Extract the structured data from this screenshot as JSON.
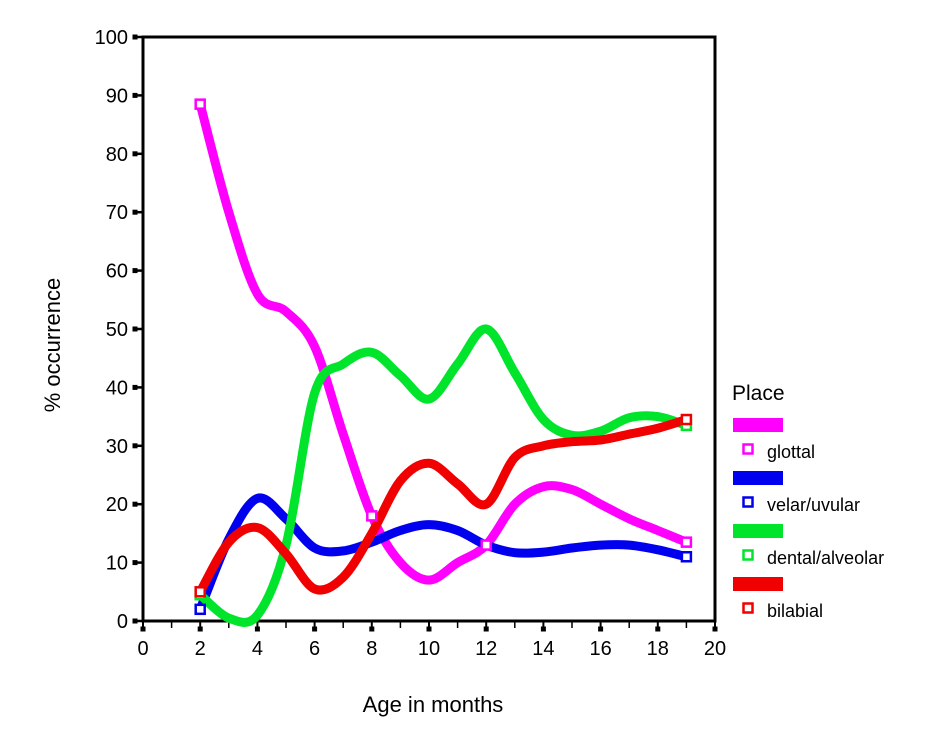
{
  "figure": {
    "background": "#ffffff",
    "axis_color": "#000000",
    "text_color": "#000000"
  },
  "chart_data": {
    "type": "line",
    "title": "",
    "xlabel": "Age in months",
    "ylabel": "% occurrence",
    "xlim": [
      0,
      20
    ],
    "ylim": [
      0,
      100
    ],
    "x_major_ticks": [
      0,
      2,
      4,
      6,
      8,
      10,
      12,
      14,
      16,
      18,
      20
    ],
    "x_minor_ticks": [
      1,
      3,
      5,
      7,
      9,
      11,
      13,
      15,
      17,
      19
    ],
    "y_major_ticks": [
      0,
      10,
      20,
      30,
      40,
      50,
      60,
      70,
      80,
      90,
      100
    ],
    "grid": false,
    "line_style": "smooth",
    "line_width": 9,
    "marker_shape": "open-square",
    "legend_title": "Place",
    "legend_position": "right",
    "x": [
      2,
      3,
      4,
      5,
      6,
      7,
      8,
      9,
      10,
      11,
      12,
      13,
      14,
      15,
      16,
      17,
      18,
      19
    ],
    "series": [
      {
        "name": "glottal",
        "color": "#FF00FF",
        "values": [
          88.5,
          70,
          56,
          53,
          47,
          32,
          18,
          10,
          7,
          10,
          13,
          20,
          23,
          22.5,
          20,
          17.5,
          15.5,
          13.5
        ],
        "marker_months": [
          2,
          8,
          12,
          19
        ]
      },
      {
        "name": "velar/uvular",
        "color": "#0000EE",
        "values": [
          2,
          14,
          21,
          17.5,
          12.5,
          12,
          13.5,
          15.5,
          16.5,
          15.5,
          13,
          11.7,
          11.8,
          12.5,
          13,
          13,
          12.2,
          11
        ],
        "marker_months": [
          2,
          19
        ]
      },
      {
        "name": "dental/alveolar",
        "color": "#00E52B",
        "values": [
          4.5,
          0.5,
          1,
          13,
          39,
          44,
          46,
          42,
          38,
          44,
          50,
          42.5,
          34.5,
          31.8,
          32.5,
          34.8,
          35,
          33.5
        ],
        "marker_months": [
          2,
          19
        ]
      },
      {
        "name": "bilabial",
        "color": "#F00000",
        "values": [
          5,
          13.5,
          16,
          11.5,
          5.5,
          7.5,
          15,
          24,
          27,
          23.5,
          20,
          28,
          30,
          30.7,
          31,
          32,
          33,
          34.5
        ],
        "marker_months": [
          2,
          19
        ]
      }
    ]
  }
}
